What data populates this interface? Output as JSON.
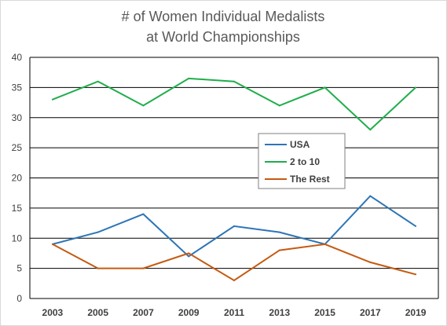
{
  "chart_data": {
    "type": "line",
    "title_lines": [
      "# of Women Individual Medalists",
      "at World Championships"
    ],
    "xlabel": "",
    "ylabel": "",
    "categories": [
      "2003",
      "2005",
      "2007",
      "2009",
      "2011",
      "2013",
      "2015",
      "2017",
      "2019"
    ],
    "ylim": [
      0,
      40
    ],
    "yticks": [
      0,
      5,
      10,
      15,
      20,
      25,
      30,
      35,
      40
    ],
    "grid": true,
    "legend_position": "center-right",
    "series": [
      {
        "name": "USA",
        "color": "#2e75b6",
        "values": [
          9,
          11,
          14,
          7,
          12,
          11,
          9,
          17,
          12
        ]
      },
      {
        "name": "2 to 10",
        "color": "#1fae4b",
        "values": [
          33,
          36,
          32,
          36.5,
          36,
          32,
          35,
          28,
          35
        ]
      },
      {
        "name": "The Rest",
        "color": "#c55a11",
        "values": [
          9,
          5,
          5,
          7.5,
          3,
          8,
          9,
          6,
          4
        ]
      }
    ]
  }
}
